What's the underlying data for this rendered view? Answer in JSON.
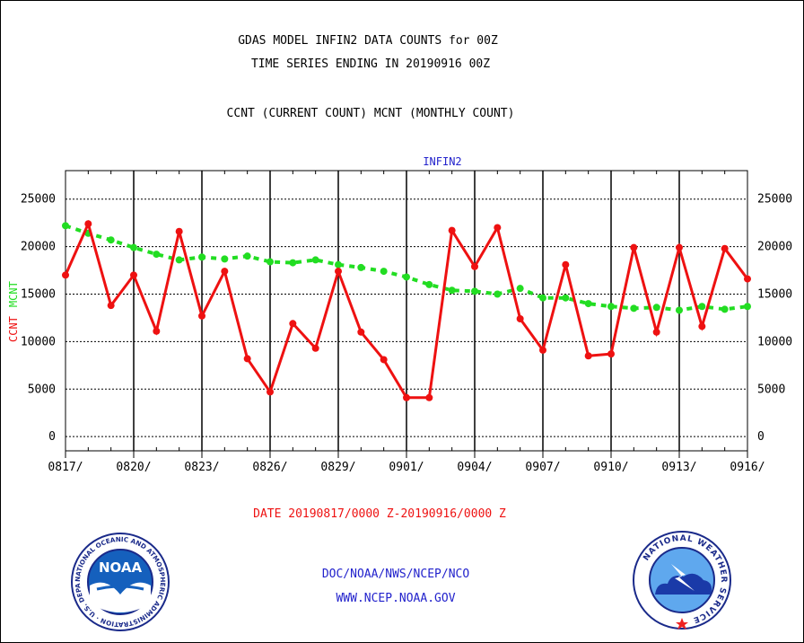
{
  "header": {
    "title_line1": "GDAS MODEL INFIN2 DATA COUNTS for 00Z",
    "title_line2": "TIME SERIES ENDING IN 20190916 00Z",
    "subtitle": "CCNT (CURRENT COUNT) MCNT (MONTHLY COUNT)"
  },
  "chart_data": {
    "type": "line",
    "title": "INFIN2",
    "ylabel_parts": [
      "CCNT",
      "MCNT"
    ],
    "ylim": [
      -1500,
      28000
    ],
    "yticks": [
      0,
      5000,
      10000,
      15000,
      20000,
      25000
    ],
    "ytick_labels": [
      "0",
      "5000",
      "10000",
      "15000",
      "20000",
      "25000"
    ],
    "xtick_labels": [
      "0817/",
      "0820/",
      "0823/",
      "0826/",
      "0829/",
      "0901/",
      "0904/",
      "0907/",
      "0910/",
      "0913/",
      "0916/"
    ],
    "xtick_indices": [
      0,
      3,
      6,
      9,
      12,
      15,
      18,
      21,
      24,
      27,
      30
    ],
    "grid": true,
    "colors": {
      "ccnt": "#ee1111",
      "mcnt": "#22dd22",
      "title": "#2222cc",
      "footer_date": "#ee1111",
      "footer_links": "#2222cc"
    },
    "series": [
      {
        "name": "CCNT",
        "values": [
          17000,
          22400,
          13800,
          17000,
          11100,
          21600,
          12700,
          17400,
          8200,
          4700,
          11900,
          9300,
          17400,
          11000,
          8100,
          4100,
          4100,
          21700,
          17900,
          22000,
          12400,
          9100,
          18100,
          8500,
          8700,
          19900,
          11000,
          19900,
          11600,
          19800,
          16600
        ]
      },
      {
        "name": "MCNT",
        "values": [
          22200,
          21400,
          20700,
          19900,
          19200,
          18600,
          18900,
          18700,
          19000,
          18400,
          18300,
          18600,
          18100,
          17800,
          17400,
          16800,
          16000,
          15400,
          15300,
          15000,
          15600,
          14600,
          14600,
          14000,
          13700,
          13500,
          13600,
          13300,
          13700,
          13400,
          13700
        ]
      }
    ]
  },
  "footer": {
    "date_range": "DATE 20190817/0000 Z-20190916/0000 Z",
    "org_path": "DOC/NOAA/NWS/NCEP/NCO",
    "website": "WWW.NCEP.NOAA.GOV"
  },
  "logos": {
    "noaa_text": "NOAA",
    "noaa_ring": "NATIONAL OCEANIC AND ATMOSPHERIC ADMINISTRATION · U.S. DEPARTMENT OF COMMERCE ·",
    "nws_ring": "NATIONAL WEATHER SERVICE"
  }
}
